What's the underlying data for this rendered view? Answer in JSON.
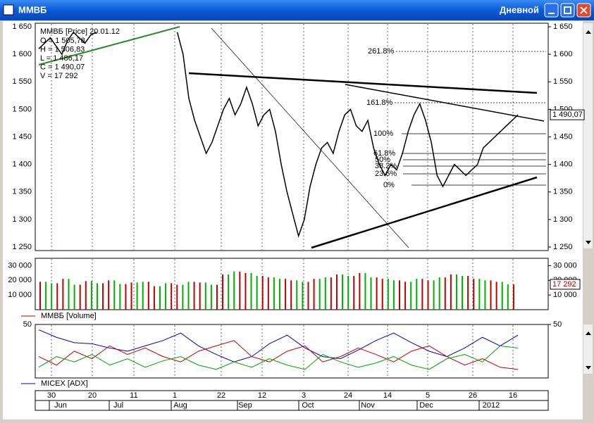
{
  "window": {
    "title": "ММВБ",
    "mode": "Дневной"
  },
  "info": {
    "header": "ММВБ [Price] 20.01.12",
    "lines": [
      "O = 1 505,78",
      "H = 1 506,83",
      "L = 1 486,17",
      "C = 1 490,07",
      "V = 17 292"
    ]
  },
  "price": {
    "type": "line",
    "color": "#000000",
    "ylim": [
      1250,
      1650
    ],
    "yticks": [
      {
        "value": 1650,
        "label": "1 650"
      },
      {
        "value": 1600,
        "label": "1 600"
      },
      {
        "value": 1550,
        "label": "1 550"
      },
      {
        "value": 1500,
        "label": "1 500"
      },
      {
        "value": 1450,
        "label": "1 450"
      },
      {
        "value": 1400,
        "label": "1 400"
      },
      {
        "value": 1350,
        "label": "1 350"
      },
      {
        "value": 1300,
        "label": "1 300"
      },
      {
        "value": 1250,
        "label": "1 250"
      }
    ],
    "last": {
      "value": 1490.07,
      "label": "1 490,07"
    },
    "fib_labels": [
      "261.8%",
      "161.8%",
      "100%",
      "61.8%",
      "50%",
      "38.2%",
      "23.6%",
      "0%"
    ],
    "values": [
      1610,
      1620,
      1630,
      1615,
      1600,
      1625,
      1640,
      1630,
      1620,
      1635,
      1640,
      null,
      null,
      null,
      null,
      null,
      null,
      null,
      null,
      null,
      null,
      null,
      null,
      null,
      1640,
      1600,
      1520,
      1480,
      1450,
      1420,
      1440,
      1470,
      1500,
      1520,
      1490,
      1510,
      1540,
      1510,
      1470,
      1490,
      1500,
      1460,
      1400,
      1350,
      1310,
      1270,
      1300,
      1360,
      1400,
      1430,
      1440,
      1420,
      1460,
      1490,
      1500,
      1470,
      1460,
      1480,
      1430,
      1400,
      1380,
      1400,
      1390,
      1420,
      1460,
      1490,
      1510,
      1480,
      1440,
      1380,
      1360,
      1380,
      1400,
      1390,
      1380,
      1390,
      1400,
      1430,
      1440,
      1450,
      1460,
      1470,
      1480,
      1490
    ]
  },
  "volume": {
    "type": "bar",
    "legend": "ММВБ [Volume]",
    "legend_color": "#c00000",
    "colors": [
      "#c00000",
      "#00b000"
    ],
    "ylim": [
      0,
      35000
    ],
    "yticks": [
      {
        "value": 30000,
        "label": "30 000"
      },
      {
        "value": 20000,
        "label": "20 000"
      },
      {
        "value": 10000,
        "label": "10 000"
      }
    ],
    "last": {
      "value": 17292,
      "label": "17 292"
    },
    "values": [
      19000,
      18000,
      21000,
      17000,
      19500,
      18000,
      20000,
      17500,
      18500,
      19000,
      16000,
      18000,
      17000,
      19000,
      18500,
      17000,
      24000,
      26000,
      25000,
      23000,
      22000,
      21000,
      20000,
      19000,
      21000,
      22000,
      24000,
      23000,
      25000,
      22000,
      21000,
      20000,
      19000,
      21000,
      20000,
      22000,
      24000,
      23000,
      21000,
      20000,
      19000,
      17292
    ]
  },
  "adx": {
    "type": "line",
    "ylim": [
      0,
      50
    ],
    "yticks": [
      50
    ],
    "series": [
      {
        "name": "MICEX [ADX]",
        "color": "#0000c0",
        "values": [
          45,
          38,
          33,
          32,
          28,
          25,
          30,
          35,
          42,
          30,
          22,
          15,
          20,
          32,
          40,
          28,
          20,
          18,
          26,
          35,
          42,
          33,
          25,
          20,
          28,
          38,
          30,
          40
        ]
      },
      {
        "color": "#c00000",
        "values": [
          20,
          12,
          25,
          18,
          30,
          22,
          28,
          20,
          15,
          25,
          30,
          35,
          20,
          15,
          25,
          30,
          15,
          20,
          28,
          22,
          15,
          25,
          30,
          20,
          12,
          18,
          10,
          8
        ]
      },
      {
        "color": "#00a000",
        "values": [
          10,
          20,
          15,
          22,
          12,
          18,
          10,
          16,
          20,
          12,
          8,
          15,
          10,
          18,
          12,
          8,
          22,
          15,
          10,
          14,
          20,
          12,
          8,
          18,
          22,
          15,
          30,
          28
        ]
      }
    ]
  },
  "xaxis": {
    "days": [
      "30",
      "20",
      "11",
      "1",
      "22",
      "12",
      "3",
      "24",
      "14",
      "5",
      "26",
      "16"
    ],
    "months": [
      "Jun",
      "Jul",
      "Aug",
      "Sep",
      "Oct",
      "Nov",
      "Dec",
      "2012"
    ]
  }
}
